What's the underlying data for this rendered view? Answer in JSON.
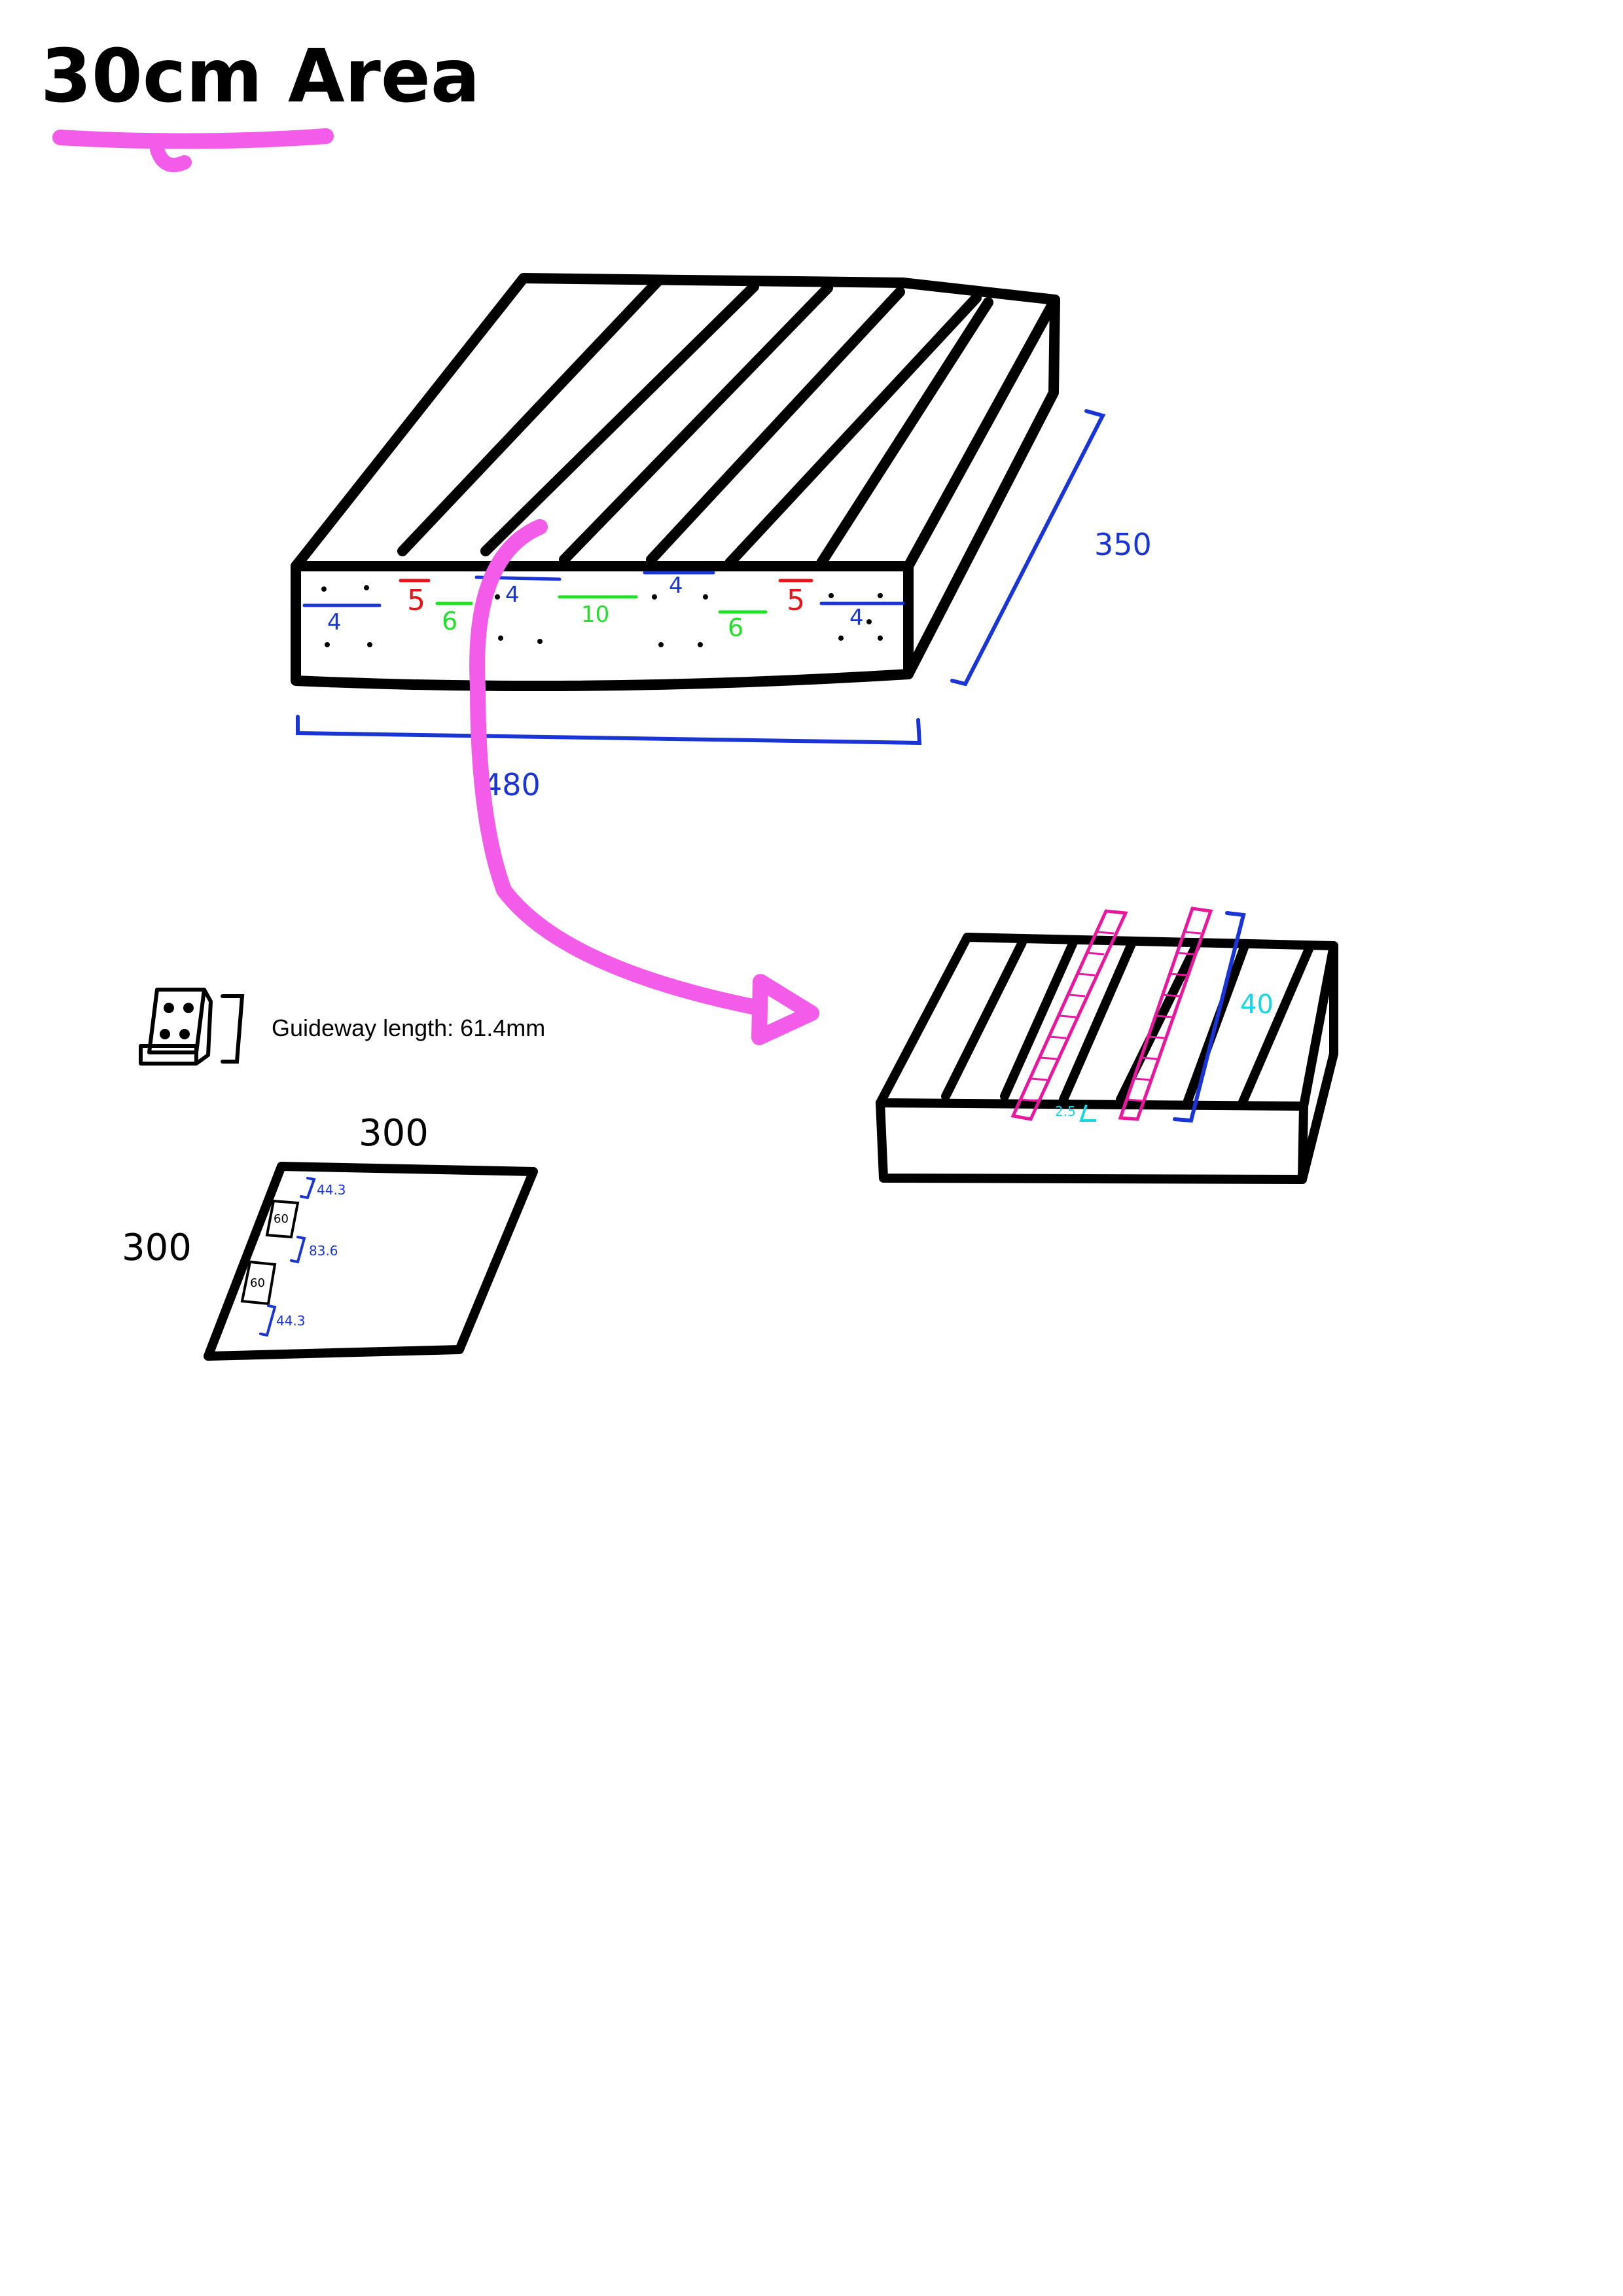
{
  "title": "30cm Area",
  "colors": {
    "ink": "#000000",
    "blue": "#1a35d6",
    "red": "#e8141c",
    "green": "#22e02a",
    "pink": "#f25ce8",
    "magenta": "#e8189e",
    "cyan": "#18d6e6",
    "paper": "#ffffff"
  },
  "big_block": {
    "layer_labels": [
      {
        "text": "4",
        "color": "blue"
      },
      {
        "text": "5",
        "color": "red"
      },
      {
        "text": "6",
        "color": "green"
      },
      {
        "text": "4",
        "color": "blue"
      },
      {
        "text": "10",
        "color": "green"
      },
      {
        "text": "4",
        "color": "blue"
      },
      {
        "text": "6",
        "color": "green"
      },
      {
        "text": "5",
        "color": "red"
      },
      {
        "text": "4",
        "color": "blue"
      }
    ],
    "width_label": "480",
    "depth_label": "350"
  },
  "small_block": {
    "height_label": "40",
    "gap_label": "2.5"
  },
  "guideway": {
    "caption": "Guideway length: 61.4mm"
  },
  "plate": {
    "top_label": "300",
    "side_label": "300",
    "slot_label_a": "60",
    "slot_label_b": "60",
    "spacing_top": "44.3",
    "spacing_middle": "83.6",
    "spacing_bottom": "44.3"
  }
}
